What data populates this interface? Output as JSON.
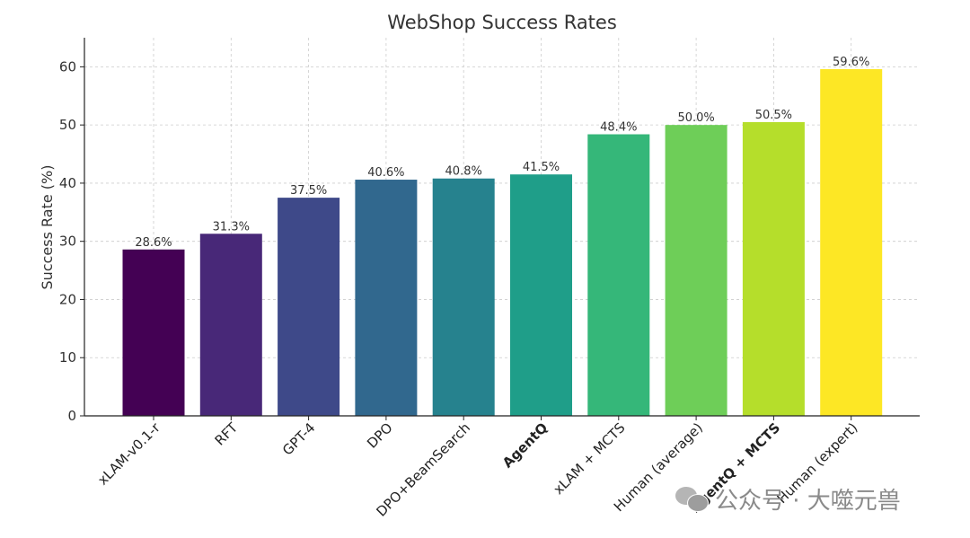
{
  "chart_data": {
    "type": "bar",
    "title": "WebShop Success Rates",
    "xlabel": "",
    "ylabel": "Success Rate (%)",
    "ylim": [
      0,
      65
    ],
    "yticks": [
      0,
      10,
      20,
      30,
      40,
      50,
      60
    ],
    "grid": true,
    "categories": [
      "xLAM-v0.1-r",
      "RFT",
      "GPT-4",
      "DPO",
      "DPO+BeamSearch",
      "AgentQ",
      "xLAM + MCTS",
      "Human (average)",
      "AgentQ + MCTS",
      "Human (expert)"
    ],
    "values": [
      28.6,
      31.3,
      37.5,
      40.6,
      40.8,
      41.5,
      48.4,
      50.0,
      50.5,
      59.6
    ],
    "data_labels": [
      "28.6%",
      "31.3%",
      "37.5%",
      "40.6%",
      "40.8%",
      "41.5%",
      "48.4%",
      "50.0%",
      "50.5%",
      "59.6%"
    ],
    "bold_categories": [
      "AgentQ",
      "AgentQ + MCTS"
    ],
    "colors": [
      "#440154",
      "#482878",
      "#3e4989",
      "#31688e",
      "#26828e",
      "#1f9e89",
      "#35b779",
      "#6ece58",
      "#b5de2b",
      "#fde725"
    ]
  },
  "watermark": {
    "text": "公众号 · 大噬元兽",
    "icon": "wechat-icon"
  }
}
